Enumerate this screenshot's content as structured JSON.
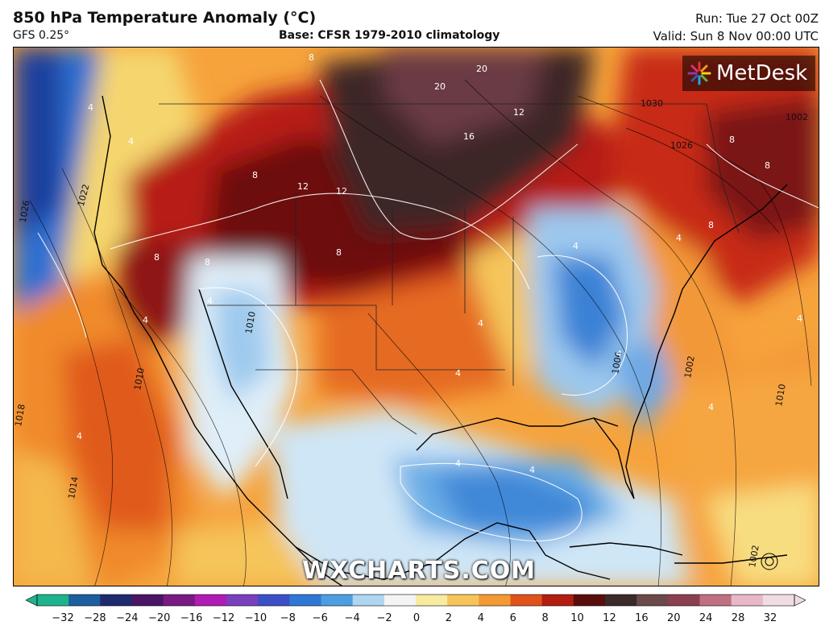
{
  "header": {
    "title": "850 hPa Temperature Anomaly (°C)",
    "model": "GFS 0.25°",
    "base": "Base: CFSR 1979-2010 climatology",
    "run": "Run: Tue 27 Oct 00Z",
    "valid": "Valid: Sun 8 Nov 00:00 UTC"
  },
  "brand": {
    "logo_text": "MetDesk",
    "logo_icon": "starburst-icon",
    "watermark": "WXCHARTS.COM"
  },
  "colorbar": {
    "ticks": [
      "−32",
      "−28",
      "−24",
      "−20",
      "−16",
      "−12",
      "−10",
      "−8",
      "−6",
      "−4",
      "−2",
      "0",
      "2",
      "4",
      "6",
      "8",
      "10",
      "12",
      "16",
      "20",
      "24",
      "28",
      "32"
    ],
    "colors": [
      "#1fb38d",
      "#1d5f9e",
      "#1e2a6e",
      "#4b1565",
      "#7a1b84",
      "#b01cb5",
      "#7a3fbf",
      "#3d4fc7",
      "#2f77d4",
      "#4c9ee0",
      "#aed6f0",
      "#f4f4f4",
      "#f8eaa0",
      "#f7c45a",
      "#f39a34",
      "#e0521c",
      "#b21d12",
      "#5a0d0d",
      "#3a2a2a",
      "#6b4a4a",
      "#8a4050",
      "#c07080",
      "#e8b8c8",
      "#f2dce4"
    ]
  },
  "contour_labels": {
    "isobars": [
      "1030",
      "1026",
      "1026",
      "1022",
      "1018",
      "1014",
      "1010",
      "1010",
      "1006",
      "1002",
      "1002",
      "1010",
      "1002"
    ],
    "anomaly": [
      "8",
      "8",
      "8",
      "8",
      "8",
      "8",
      "12",
      "12",
      "16",
      "20",
      "20",
      "12",
      "8",
      "8",
      "4",
      "4",
      "4",
      "4",
      "4",
      "4",
      "4",
      "4",
      "4",
      "4",
      "4",
      "4",
      "4",
      "4"
    ]
  }
}
